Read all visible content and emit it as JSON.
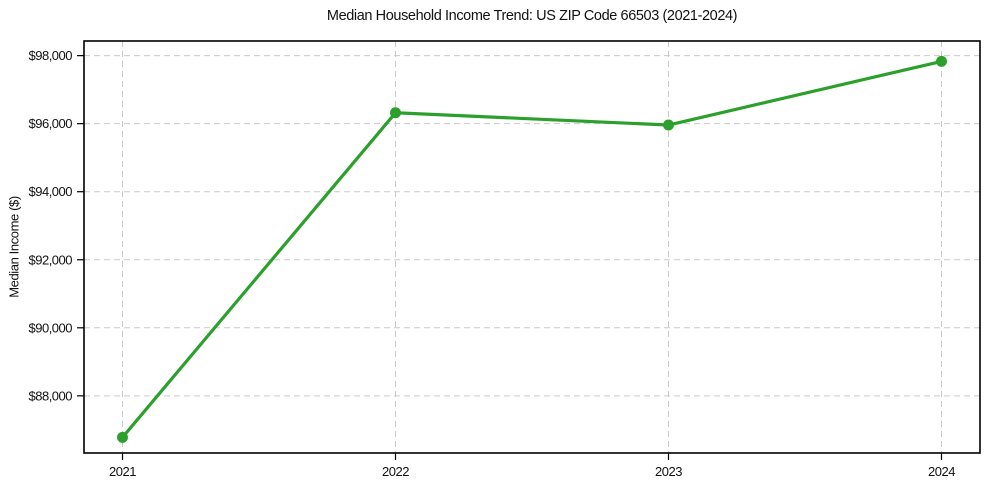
{
  "figure": {
    "background": "#ffffff"
  },
  "chart_data": {
    "type": "line",
    "title": "Median Household Income Trend: US ZIP Code 66503 (2021-2024)",
    "xlabel": "",
    "ylabel": "Median Income ($)",
    "categories": [
      "2021",
      "2022",
      "2023",
      "2024"
    ],
    "values": [
      86780,
      96320,
      95960,
      97830
    ],
    "y_ticks": [
      {
        "value": 88000,
        "label": "$88,000"
      },
      {
        "value": 90000,
        "label": "$90,000"
      },
      {
        "value": 92000,
        "label": "$92,000"
      },
      {
        "value": 94000,
        "label": "$94,000"
      },
      {
        "value": 96000,
        "label": "$96,000"
      },
      {
        "value": 98000,
        "label": "$98,000"
      }
    ],
    "ylim": [
      86320,
      98430
    ],
    "grid": true,
    "grid_style": "dashed",
    "legend_position": "none",
    "marker": "circle"
  },
  "colors": {
    "line": "#2ca02c",
    "marker": "#2ca02c",
    "grid": "#c9c9c9",
    "spine": "#000000",
    "text": "#111111",
    "background": "#ffffff"
  }
}
